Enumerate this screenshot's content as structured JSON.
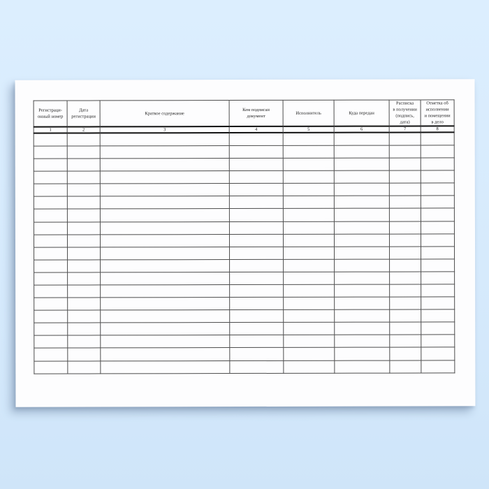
{
  "background": {
    "top_color": "#dceefe",
    "bottom_color": "#cfe5f9"
  },
  "page": {
    "color": "#fdfdfe"
  },
  "table": {
    "line_color": "#4d4d4d",
    "thick_line_color": "#121212",
    "ink_color": "#1c1c1c",
    "columns": [
      {
        "label": "Регистраци-\nонный номер",
        "number": "1"
      },
      {
        "label": "Дата\nрегистрации",
        "number": "2"
      },
      {
        "label": "Краткое содержание",
        "number": "3"
      },
      {
        "label": "Кем подписан\nдокумент",
        "number": "4"
      },
      {
        "label": "Исполнитель",
        "number": "5"
      },
      {
        "label": "Куда передан",
        "number": "6"
      },
      {
        "label": "Расписка\nв получении\n(подпись,\nдата)",
        "number": "7"
      },
      {
        "label": "Отметка об\nисполнении\nи помещении\nв дело",
        "number": "8"
      }
    ],
    "empty_rows": 19
  }
}
